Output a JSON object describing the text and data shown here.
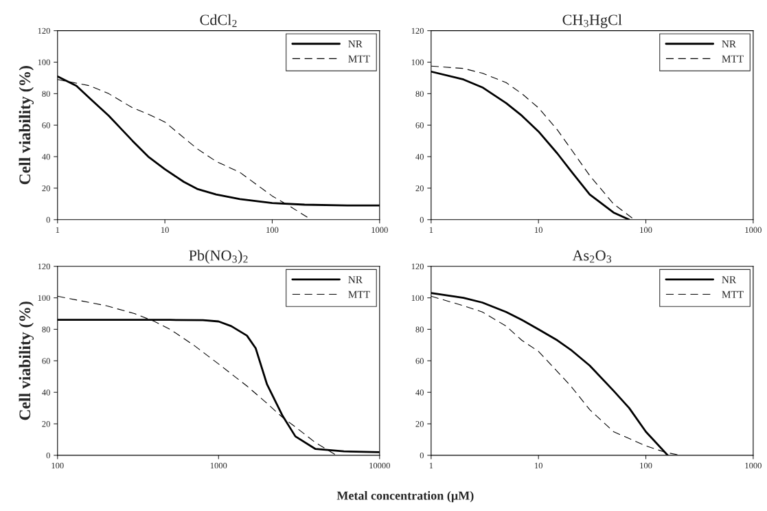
{
  "chart_data": [
    {
      "type": "line",
      "title": "CdCl$_{2}$",
      "ylabel": "Cell viability (%)",
      "log": "x",
      "xlim": [
        1,
        1000
      ],
      "xticks": [
        1,
        10,
        100,
        1000
      ],
      "ylim": [
        0,
        120
      ],
      "yticks": [
        0,
        20,
        40,
        60,
        80,
        100,
        120
      ],
      "legend": "top right",
      "grid": false,
      "series": [
        {
          "name": "NR",
          "color": "#000000",
          "line_style": "solid",
          "x": [
            1,
            1.5,
            2,
            3,
            4,
            5,
            7,
            10,
            15,
            20,
            30,
            50,
            100,
            200,
            500,
            1000
          ],
          "values": [
            91,
            85,
            77,
            66,
            57,
            50,
            40,
            32,
            24,
            19.5,
            16,
            13,
            10.5,
            9.5,
            9,
            9
          ]
        },
        {
          "name": "MTT",
          "color": "#000000",
          "line_style": "dashed",
          "x": [
            1,
            2,
            3,
            5,
            7,
            10,
            20,
            30,
            50,
            100,
            150,
            230
          ],
          "values": [
            89,
            85,
            80,
            71,
            67,
            62,
            45,
            37,
            30,
            15,
            8,
            0
          ]
        }
      ]
    },
    {
      "type": "line",
      "title": "CH$_{3}$HgCl",
      "log": "x",
      "xlim": [
        1,
        1000
      ],
      "xticks": [
        1,
        10,
        100,
        1000
      ],
      "ylim": [
        0,
        120
      ],
      "yticks": [
        0,
        20,
        40,
        60,
        80,
        100,
        120
      ],
      "legend": "top right",
      "grid": false,
      "series": [
        {
          "name": "NR",
          "color": "#000000",
          "line_style": "solid",
          "x": [
            1,
            2,
            3,
            5,
            7,
            10,
            15,
            20,
            30,
            50,
            70
          ],
          "values": [
            94,
            89,
            84,
            74,
            66,
            56,
            42,
            31,
            16,
            4.5,
            0
          ]
        },
        {
          "name": "MTT",
          "color": "#000000",
          "line_style": "dashed",
          "x": [
            1,
            2,
            3,
            5,
            7,
            10,
            15,
            20,
            30,
            50,
            78
          ],
          "values": [
            97.5,
            96,
            93,
            87,
            80,
            71,
            57,
            45,
            28,
            10,
            0
          ]
        }
      ]
    },
    {
      "type": "line",
      "title": "Pb(NO$_{3}$)$_{2}$",
      "ylabel": "Cell viability (%)",
      "xlabel": "Metal concentration (µM)",
      "log": "x",
      "xlim": [
        100,
        10000
      ],
      "xticks": [
        100,
        1000,
        10000
      ],
      "ylim": [
        0,
        120
      ],
      "yticks": [
        0,
        20,
        40,
        60,
        80,
        100,
        120
      ],
      "legend": "top right",
      "grid": false,
      "series": [
        {
          "name": "NR",
          "color": "#000000",
          "line_style": "solid",
          "x": [
            100,
            500,
            800,
            1000,
            1200,
            1500,
            1700,
            2000,
            2500,
            3000,
            4000,
            6000,
            10000
          ],
          "values": [
            86,
            86,
            85.8,
            85,
            82,
            76,
            68,
            45,
            25,
            12,
            4,
            2.5,
            2
          ]
        },
        {
          "name": "MTT",
          "color": "#000000",
          "line_style": "dashed",
          "x": [
            100,
            200,
            300,
            400,
            500,
            700,
            1000,
            1500,
            2000,
            2500,
            3000,
            4000,
            5400
          ],
          "values": [
            101,
            95,
            90,
            85,
            80,
            70,
            58,
            44,
            33,
            24,
            18,
            8,
            0
          ]
        }
      ]
    },
    {
      "type": "line",
      "title": "As$_{2}$O$_{3}$",
      "log": "x",
      "xlim": [
        1,
        1000
      ],
      "xticks": [
        1,
        10,
        100,
        1000
      ],
      "ylim": [
        0,
        120
      ],
      "yticks": [
        0,
        20,
        40,
        60,
        80,
        100,
        120
      ],
      "legend": "top right",
      "grid": false,
      "series": [
        {
          "name": "NR",
          "color": "#000000",
          "line_style": "solid",
          "x": [
            1,
            2,
            3,
            5,
            7,
            10,
            15,
            20,
            30,
            50,
            70,
            100,
            160
          ],
          "values": [
            103,
            100,
            97,
            91,
            86,
            80,
            73,
            67,
            57,
            41,
            30,
            15,
            0
          ]
        },
        {
          "name": "MTT",
          "color": "#000000",
          "line_style": "dashed",
          "x": [
            1,
            2,
            3,
            5,
            7,
            10,
            20,
            30,
            50,
            100,
            150,
            210
          ],
          "values": [
            101,
            95,
            91,
            82,
            73,
            66,
            44,
            29,
            15,
            6,
            2,
            0
          ]
        }
      ]
    }
  ]
}
